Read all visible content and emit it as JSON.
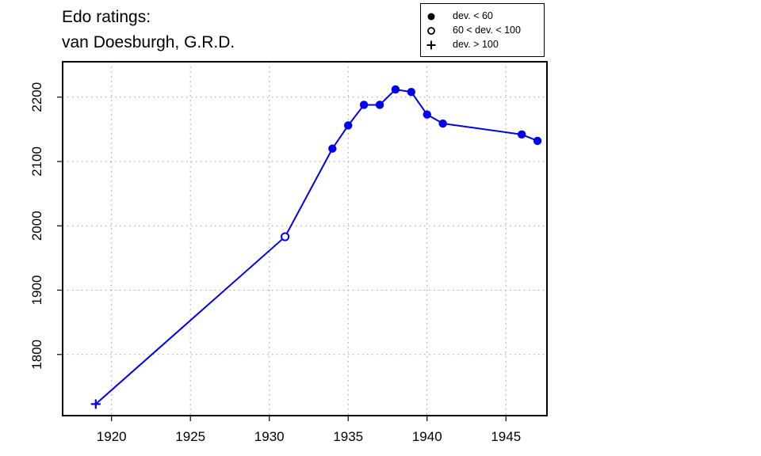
{
  "title": [
    "Edo ratings:",
    "van Doesburgh, G.R.D."
  ],
  "legend": {
    "items": [
      {
        "label": "dev. < 60",
        "symbol": "filled-circle"
      },
      {
        "label": "60 < dev. < 100",
        "symbol": "open-circle"
      },
      {
        "label": "dev. > 100",
        "symbol": "plus"
      }
    ]
  },
  "colors": {
    "series": "#0000ee",
    "axis": "#000000",
    "grid": "#9a9a9a"
  },
  "chart_data": {
    "type": "line",
    "title": "Edo ratings: van Doesburgh, G.R.D.",
    "xlabel": "",
    "ylabel": "",
    "xlim": [
      1916.9,
      1947.6
    ],
    "ylim": [
      1705,
      2255
    ],
    "x_ticks": [
      1920,
      1925,
      1930,
      1935,
      1940,
      1945
    ],
    "y_ticks": [
      1800,
      1900,
      2000,
      2100,
      2200
    ],
    "grid": true,
    "legend_position": "top-right",
    "series": [
      {
        "points": [
          {
            "x": 1919,
            "y": 1723,
            "marker": "plus"
          },
          {
            "x": 1931,
            "y": 1983,
            "marker": "open-circle"
          },
          {
            "x": 1934,
            "y": 2120,
            "marker": "filled-circle"
          },
          {
            "x": 1935,
            "y": 2156,
            "marker": "filled-circle"
          },
          {
            "x": 1936,
            "y": 2188,
            "marker": "filled-circle"
          },
          {
            "x": 1937,
            "y": 2188,
            "marker": "filled-circle"
          },
          {
            "x": 1938,
            "y": 2212,
            "marker": "filled-circle"
          },
          {
            "x": 1939,
            "y": 2208,
            "marker": "filled-circle"
          },
          {
            "x": 1940,
            "y": 2173,
            "marker": "filled-circle"
          },
          {
            "x": 1941,
            "y": 2159,
            "marker": "filled-circle"
          },
          {
            "x": 1946,
            "y": 2142,
            "marker": "filled-circle"
          },
          {
            "x": 1947,
            "y": 2132,
            "marker": "filled-circle"
          }
        ]
      }
    ]
  }
}
